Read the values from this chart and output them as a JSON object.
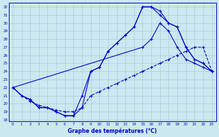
{
  "xlabel": "Graphe des températures (°C)",
  "background_color": "#cce8f0",
  "line_color": "#0000cc",
  "grid_color": "#aaccdd",
  "xlim_min": -0.5,
  "xlim_max": 23.5,
  "ylim_min": 17.8,
  "ylim_max": 32.5,
  "xticks": [
    0,
    1,
    2,
    3,
    4,
    5,
    6,
    7,
    8,
    9,
    10,
    11,
    12,
    13,
    14,
    15,
    16,
    17,
    18,
    19,
    20,
    21,
    22,
    23
  ],
  "yticks": [
    18,
    19,
    20,
    21,
    22,
    23,
    24,
    25,
    26,
    27,
    28,
    29,
    30,
    31,
    32
  ],
  "line1_x": [
    0,
    1,
    2,
    3,
    4,
    5,
    6,
    7,
    8,
    9,
    10,
    11,
    12,
    13,
    14,
    15,
    16,
    17,
    18,
    19,
    20,
    21,
    22,
    23
  ],
  "line1_y": [
    22.0,
    21.0,
    20.5,
    19.5,
    19.5,
    19.0,
    18.5,
    18.5,
    19.5,
    24.0,
    24.5,
    26.5,
    27.5,
    28.5,
    29.5,
    32.0,
    32.0,
    31.5,
    30.0,
    29.5,
    27.0,
    25.5,
    25.0,
    24.0
  ],
  "line2_x": [
    0,
    1,
    2,
    3,
    4,
    5,
    6,
    7,
    8,
    9,
    10,
    11,
    12,
    13,
    14,
    15,
    16,
    17,
    18,
    19,
    20,
    21,
    22,
    23
  ],
  "line2_y": [
    22.0,
    21.0,
    20.5,
    19.5,
    19.5,
    19.0,
    18.5,
    18.5,
    21.0,
    24.0,
    24.5,
    26.5,
    27.5,
    28.5,
    29.5,
    32.0,
    32.0,
    31.0,
    30.0,
    29.5,
    27.0,
    25.5,
    25.0,
    24.0
  ],
  "line3_x": [
    0,
    1,
    2,
    3,
    4,
    5,
    6,
    7,
    8,
    9,
    10,
    11,
    12,
    13,
    14,
    15,
    16,
    17,
    18,
    19,
    20,
    21,
    22,
    23
  ],
  "line3_y": [
    22.0,
    21.0,
    20.3,
    19.8,
    19.5,
    19.2,
    19.0,
    19.0,
    19.5,
    21.0,
    21.5,
    22.0,
    22.5,
    23.0,
    23.5,
    24.0,
    24.5,
    25.0,
    25.5,
    26.0,
    26.5,
    27.0,
    27.0,
    24.0
  ],
  "line4_x": [
    0,
    15,
    16,
    17,
    18,
    19,
    20,
    21,
    22,
    23
  ],
  "line4_y": [
    22.0,
    27.0,
    28.0,
    30.0,
    29.0,
    27.0,
    25.5,
    25.0,
    24.5,
    24.0
  ]
}
